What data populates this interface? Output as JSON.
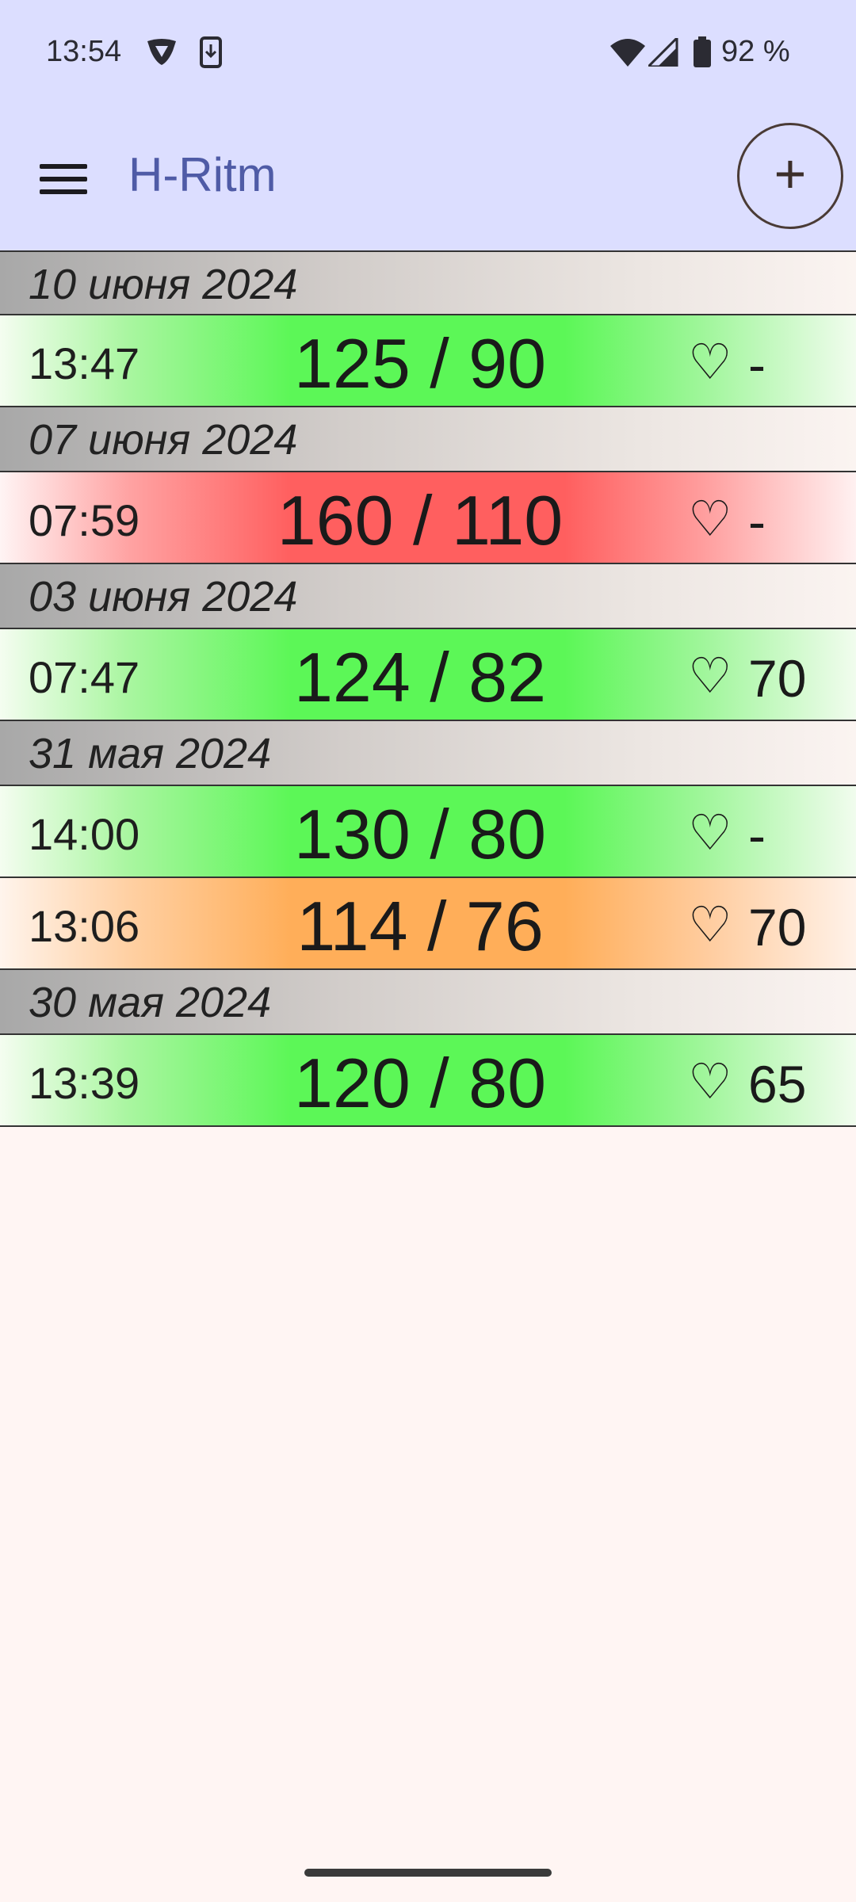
{
  "status_bar": {
    "time": "13:54",
    "battery": "92 %",
    "icons": [
      "vpn-shield-icon",
      "download-phone-icon",
      "wifi-icon",
      "signal-icon",
      "battery-icon"
    ]
  },
  "app_bar": {
    "title": "H-Ritm",
    "menu_icon": "hamburger-menu-icon",
    "add_label": "+"
  },
  "heart_symbol": "♡",
  "colors": {
    "header_bg": "#dcdeff",
    "title": "#4f5ba6",
    "normal": "#5cf757",
    "high": "#ff5f5f",
    "low": "#ffae59",
    "page_bg": "#fff5f3"
  },
  "groups": [
    {
      "date": "10 июня 2024",
      "readings": [
        {
          "time": "13:47",
          "value": "125 / 90",
          "pulse": "-",
          "status": "green"
        }
      ]
    },
    {
      "date": "07 июня 2024",
      "readings": [
        {
          "time": "07:59",
          "value": "160 / 110",
          "pulse": "-",
          "status": "red"
        }
      ]
    },
    {
      "date": "03 июня 2024",
      "readings": [
        {
          "time": "07:47",
          "value": "124 / 82",
          "pulse": "70",
          "status": "green"
        }
      ]
    },
    {
      "date": "31 мая 2024",
      "readings": [
        {
          "time": "14:00",
          "value": "130 / 80",
          "pulse": "-",
          "status": "green"
        },
        {
          "time": "13:06",
          "value": "114 / 76",
          "pulse": "70",
          "status": "orange"
        }
      ]
    },
    {
      "date": "30 мая 2024",
      "readings": [
        {
          "time": "13:39",
          "value": "120 / 80",
          "pulse": "65",
          "status": "green"
        }
      ]
    }
  ]
}
